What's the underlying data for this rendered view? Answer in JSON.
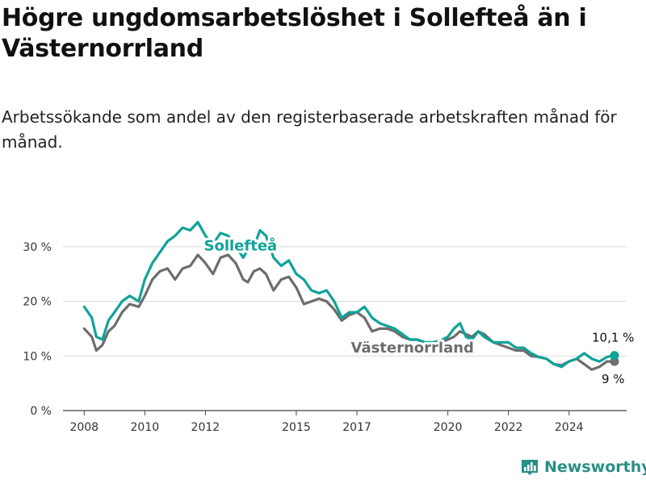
{
  "title": "Högre ungdomsarbetslöshet i Sollefteå än i Västernorrland",
  "subtitle": "Arbetssökande som andel av den registerbaserade arbetskraften månad för månad.",
  "brand": {
    "name": "Newsworthy",
    "icon": "newsworthy-logo-icon",
    "color": "#2a8f86"
  },
  "colors": {
    "sollefte": "#0fa398",
    "vasternorrland": "#6d6d6d",
    "grid": "#d9d9d9",
    "axis": "#444444"
  },
  "chart_data": {
    "type": "line",
    "xlim": [
      2007.3,
      2025.9
    ],
    "ylim": [
      0,
      35
    ],
    "y_ticks": [
      0,
      10,
      20,
      30
    ],
    "y_tick_labels": [
      "0 %",
      "10 %",
      "20 %",
      "30 %"
    ],
    "x_ticks": [
      2008,
      2010,
      2012,
      2015,
      2017,
      2020,
      2022,
      2024
    ],
    "x_tick_labels": [
      "2008",
      "2010",
      "2012",
      "2015",
      "2017",
      "2020",
      "2022",
      "2024"
    ],
    "grid": true,
    "series": [
      {
        "name": "Sollefteå",
        "end_label": "10,1 %",
        "points": [
          [
            2008.0,
            19.0
          ],
          [
            2008.25,
            17.0
          ],
          [
            2008.4,
            13.5
          ],
          [
            2008.6,
            13.0
          ],
          [
            2008.8,
            16.5
          ],
          [
            2009.0,
            18.0
          ],
          [
            2009.25,
            20.0
          ],
          [
            2009.5,
            21.0
          ],
          [
            2009.8,
            20.0
          ],
          [
            2010.0,
            24.0
          ],
          [
            2010.25,
            27.0
          ],
          [
            2010.5,
            29.0
          ],
          [
            2010.75,
            31.0
          ],
          [
            2011.0,
            32.0
          ],
          [
            2011.25,
            33.5
          ],
          [
            2011.5,
            33.0
          ],
          [
            2011.75,
            34.5
          ],
          [
            2012.0,
            32.0
          ],
          [
            2012.25,
            30.5
          ],
          [
            2012.5,
            32.5
          ],
          [
            2012.75,
            32.0
          ],
          [
            2013.0,
            30.0
          ],
          [
            2013.25,
            28.0
          ],
          [
            2013.4,
            29.5
          ],
          [
            2013.6,
            30.0
          ],
          [
            2013.8,
            33.0
          ],
          [
            2014.0,
            32.0
          ],
          [
            2014.25,
            28.0
          ],
          [
            2014.5,
            26.5
          ],
          [
            2014.75,
            27.5
          ],
          [
            2015.0,
            25.0
          ],
          [
            2015.25,
            24.0
          ],
          [
            2015.5,
            22.0
          ],
          [
            2015.75,
            21.5
          ],
          [
            2016.0,
            22.0
          ],
          [
            2016.25,
            20.0
          ],
          [
            2016.5,
            17.0
          ],
          [
            2016.75,
            18.0
          ],
          [
            2017.0,
            18.0
          ],
          [
            2017.25,
            19.0
          ],
          [
            2017.5,
            17.0
          ],
          [
            2017.75,
            16.0
          ],
          [
            2018.0,
            15.5
          ],
          [
            2018.25,
            15.0
          ],
          [
            2018.5,
            14.0
          ],
          [
            2018.75,
            13.0
          ],
          [
            2019.0,
            13.0
          ],
          [
            2019.25,
            12.5
          ],
          [
            2019.5,
            12.5
          ],
          [
            2019.75,
            12.8
          ],
          [
            2020.0,
            13.5
          ],
          [
            2020.2,
            15.0
          ],
          [
            2020.4,
            16.0
          ],
          [
            2020.6,
            13.5
          ],
          [
            2020.8,
            13.0
          ],
          [
            2021.0,
            14.5
          ],
          [
            2021.2,
            13.5
          ],
          [
            2021.5,
            12.5
          ],
          [
            2021.75,
            12.5
          ],
          [
            2022.0,
            12.5
          ],
          [
            2022.25,
            11.5
          ],
          [
            2022.5,
            11.5
          ],
          [
            2022.75,
            10.5
          ],
          [
            2023.0,
            9.8
          ],
          [
            2023.25,
            9.5
          ],
          [
            2023.5,
            8.5
          ],
          [
            2023.75,
            8.0
          ],
          [
            2024.0,
            9.0
          ],
          [
            2024.25,
            9.5
          ],
          [
            2024.5,
            10.5
          ],
          [
            2024.75,
            9.5
          ],
          [
            2025.0,
            9.0
          ],
          [
            2025.25,
            9.8
          ],
          [
            2025.5,
            10.1
          ]
        ]
      },
      {
        "name": "Västernorrland",
        "end_label": "9 %",
        "points": [
          [
            2008.0,
            15.0
          ],
          [
            2008.25,
            13.5
          ],
          [
            2008.4,
            11.0
          ],
          [
            2008.6,
            12.0
          ],
          [
            2008.8,
            14.5
          ],
          [
            2009.0,
            15.5
          ],
          [
            2009.25,
            18.0
          ],
          [
            2009.5,
            19.5
          ],
          [
            2009.8,
            19.0
          ],
          [
            2010.0,
            21.0
          ],
          [
            2010.25,
            24.0
          ],
          [
            2010.5,
            25.5
          ],
          [
            2010.75,
            26.0
          ],
          [
            2011.0,
            24.0
          ],
          [
            2011.25,
            26.0
          ],
          [
            2011.5,
            26.5
          ],
          [
            2011.75,
            28.5
          ],
          [
            2012.0,
            27.0
          ],
          [
            2012.25,
            25.0
          ],
          [
            2012.5,
            28.0
          ],
          [
            2012.75,
            28.5
          ],
          [
            2013.0,
            27.0
          ],
          [
            2013.25,
            24.0
          ],
          [
            2013.4,
            23.5
          ],
          [
            2013.6,
            25.5
          ],
          [
            2013.8,
            26.0
          ],
          [
            2014.0,
            25.0
          ],
          [
            2014.25,
            22.0
          ],
          [
            2014.5,
            24.0
          ],
          [
            2014.75,
            24.5
          ],
          [
            2015.0,
            22.5
          ],
          [
            2015.25,
            19.5
          ],
          [
            2015.5,
            20.0
          ],
          [
            2015.75,
            20.5
          ],
          [
            2016.0,
            20.0
          ],
          [
            2016.25,
            18.5
          ],
          [
            2016.5,
            16.5
          ],
          [
            2016.75,
            17.5
          ],
          [
            2017.0,
            18.0
          ],
          [
            2017.25,
            17.0
          ],
          [
            2017.5,
            14.5
          ],
          [
            2017.75,
            15.0
          ],
          [
            2018.0,
            15.0
          ],
          [
            2018.25,
            14.5
          ],
          [
            2018.5,
            13.5
          ],
          [
            2018.75,
            13.0
          ],
          [
            2019.0,
            13.0
          ],
          [
            2019.25,
            12.0
          ],
          [
            2019.5,
            12.0
          ],
          [
            2019.75,
            12.5
          ],
          [
            2020.0,
            13.0
          ],
          [
            2020.2,
            13.5
          ],
          [
            2020.4,
            14.5
          ],
          [
            2020.6,
            14.0
          ],
          [
            2020.8,
            13.5
          ],
          [
            2021.0,
            14.5
          ],
          [
            2021.2,
            14.0
          ],
          [
            2021.5,
            12.5
          ],
          [
            2021.75,
            12.0
          ],
          [
            2022.0,
            11.5
          ],
          [
            2022.25,
            11.0
          ],
          [
            2022.5,
            11.0
          ],
          [
            2022.75,
            10.0
          ],
          [
            2023.0,
            9.8
          ],
          [
            2023.25,
            9.5
          ],
          [
            2023.5,
            8.5
          ],
          [
            2023.75,
            8.3
          ],
          [
            2024.0,
            9.0
          ],
          [
            2024.25,
            9.5
          ],
          [
            2024.5,
            8.5
          ],
          [
            2024.75,
            7.5
          ],
          [
            2025.0,
            8.0
          ],
          [
            2025.25,
            9.0
          ],
          [
            2025.5,
            9.0
          ]
        ]
      }
    ]
  }
}
